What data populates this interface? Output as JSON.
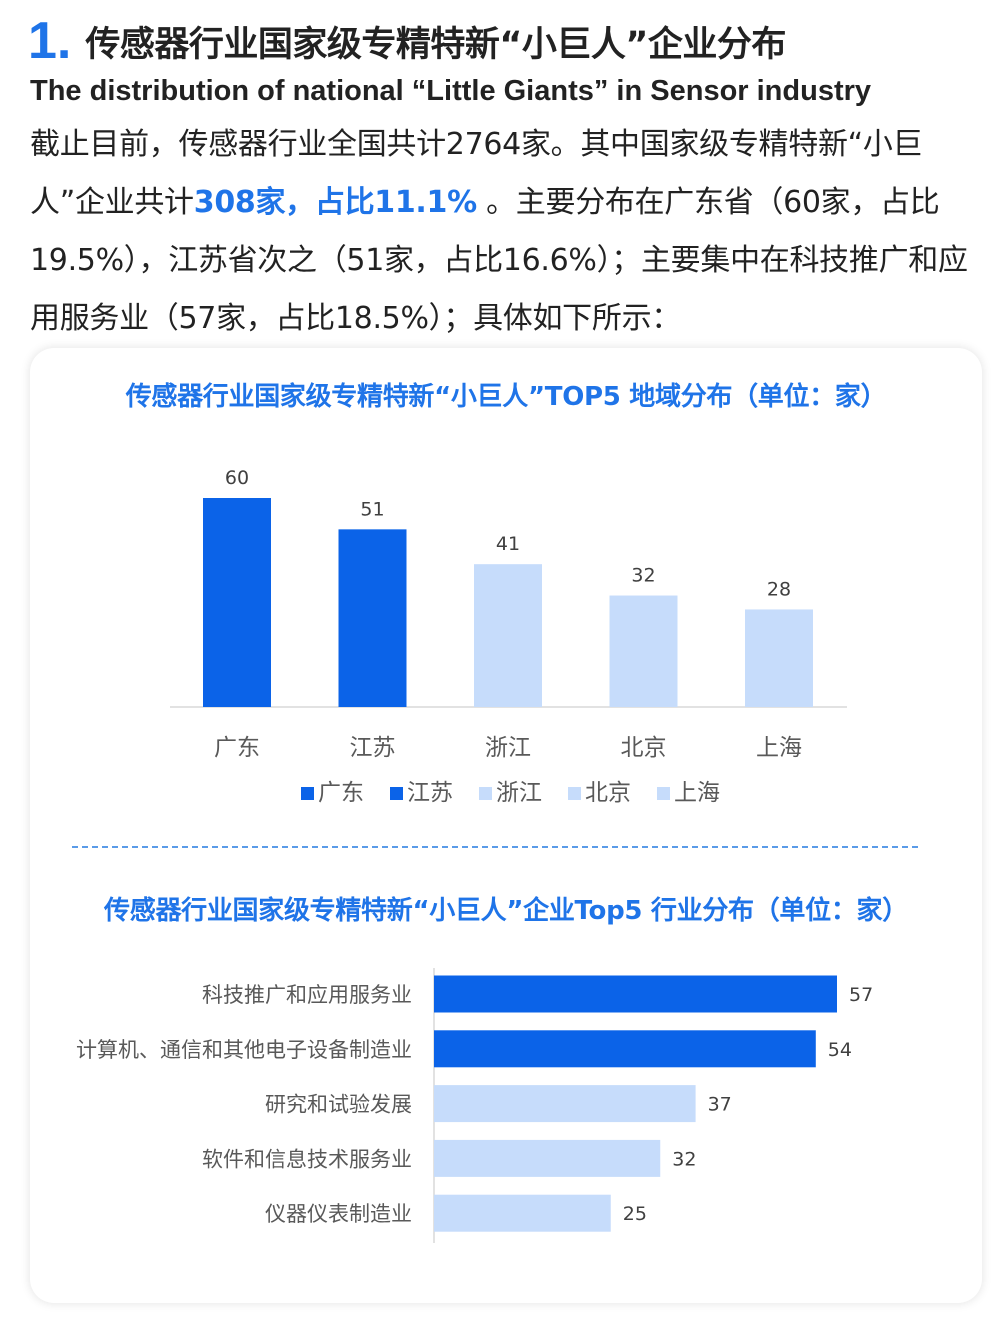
{
  "heading": {
    "number": "1.",
    "title": "传感器行业国家级专精特新“小巨人”企业分布",
    "subtitle_en": "The distribution of national “Little Giants” in Sensor industry"
  },
  "paragraph": {
    "part1": "截止目前，传感器行业全国共计2764家。其中国家级专精特新“小巨人”企业共计",
    "highlight": "308家，占比11.1%",
    "part2": " 。主要分布在广东省（60家，占比19.5%），江苏省次之（51家，占比16.6%）；主要集中在科技推广和应用服务业（57家，占比18.5%）；具体如下所示："
  },
  "colors": {
    "accent": "#1f74e8",
    "bar_dark": "#0b63e8",
    "bar_light": "#c6dcfb",
    "divider": "#5a9be8"
  },
  "chart_data": [
    {
      "type": "bar",
      "title": "传感器行业国家级专精特新“小巨人”TOP5 地域分布（单位：家）",
      "categories": [
        "广东",
        "江苏",
        "浙江",
        "北京",
        "上海"
      ],
      "values": [
        60,
        51,
        41,
        32,
        28
      ],
      "colors": [
        "#0b63e8",
        "#0b63e8",
        "#c6dcfb",
        "#c6dcfb",
        "#c6dcfb"
      ],
      "legend": [
        "广东",
        "江苏",
        "浙江",
        "北京",
        "上海"
      ],
      "legend_position": "bottom",
      "ylim": [
        0,
        60
      ],
      "grid": false
    },
    {
      "type": "bar",
      "orientation": "horizontal",
      "title": "传感器行业国家级专精特新“小巨人”企业Top5 行业分布（单位：家）",
      "categories": [
        "科技推广和应用服务业",
        "计算机、通信和其他电子设备制造业",
        "研究和试验发展",
        "软件和信息技术服务业",
        "仪器仪表制造业"
      ],
      "values": [
        57,
        54,
        37,
        32,
        25
      ],
      "colors": [
        "#0b63e8",
        "#0b63e8",
        "#c6dcfb",
        "#c6dcfb",
        "#c6dcfb"
      ],
      "xlim": [
        0,
        57
      ],
      "grid": false
    }
  ]
}
